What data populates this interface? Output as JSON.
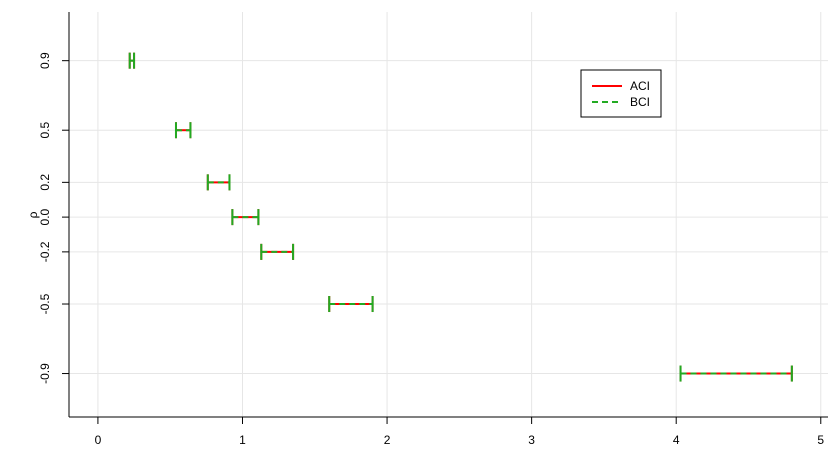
{
  "chart_data": {
    "type": "interval",
    "title": "",
    "xlabel": "",
    "ylabel": "ρ",
    "xlim": [
      -0.2,
      5.05
    ],
    "ylim": [
      -1.15,
      1.18
    ],
    "x_ticks": [
      0,
      1,
      2,
      3,
      4,
      5
    ],
    "x_tick_labels": [
      "0",
      "1",
      "2",
      "3",
      "4",
      "5"
    ],
    "y_ticks": [
      -0.9,
      -0.5,
      -0.2,
      0.0,
      0.2,
      0.5,
      0.9
    ],
    "y_tick_labels": [
      "-0.9",
      "-0.5",
      "-0.2",
      "0.0",
      "0.2",
      "0.5",
      "0.9"
    ],
    "grid": true,
    "legend_position": "top-right",
    "series": [
      {
        "name": "ACI",
        "color": "#ff0000",
        "line_style": "solid",
        "intervals": [
          {
            "y": 0.9,
            "low": 0.22,
            "high": 0.25
          },
          {
            "y": 0.5,
            "low": 0.54,
            "high": 0.64
          },
          {
            "y": 0.2,
            "low": 0.76,
            "high": 0.91
          },
          {
            "y": 0.0,
            "low": 0.93,
            "high": 1.11
          },
          {
            "y": -0.2,
            "low": 1.13,
            "high": 1.35
          },
          {
            "y": -0.5,
            "low": 1.6,
            "high": 1.9
          },
          {
            "y": -0.9,
            "low": 4.03,
            "high": 4.8
          }
        ]
      },
      {
        "name": "BCI",
        "color": "#22aa22",
        "line_style": "dashed",
        "intervals": [
          {
            "y": 0.9,
            "low": 0.22,
            "high": 0.25
          },
          {
            "y": 0.5,
            "low": 0.54,
            "high": 0.64
          },
          {
            "y": 0.2,
            "low": 0.76,
            "high": 0.91
          },
          {
            "y": 0.0,
            "low": 0.93,
            "high": 1.11
          },
          {
            "y": -0.2,
            "low": 1.13,
            "high": 1.35
          },
          {
            "y": -0.5,
            "low": 1.6,
            "high": 1.9
          },
          {
            "y": -0.9,
            "low": 4.03,
            "high": 4.8
          }
        ]
      }
    ]
  }
}
